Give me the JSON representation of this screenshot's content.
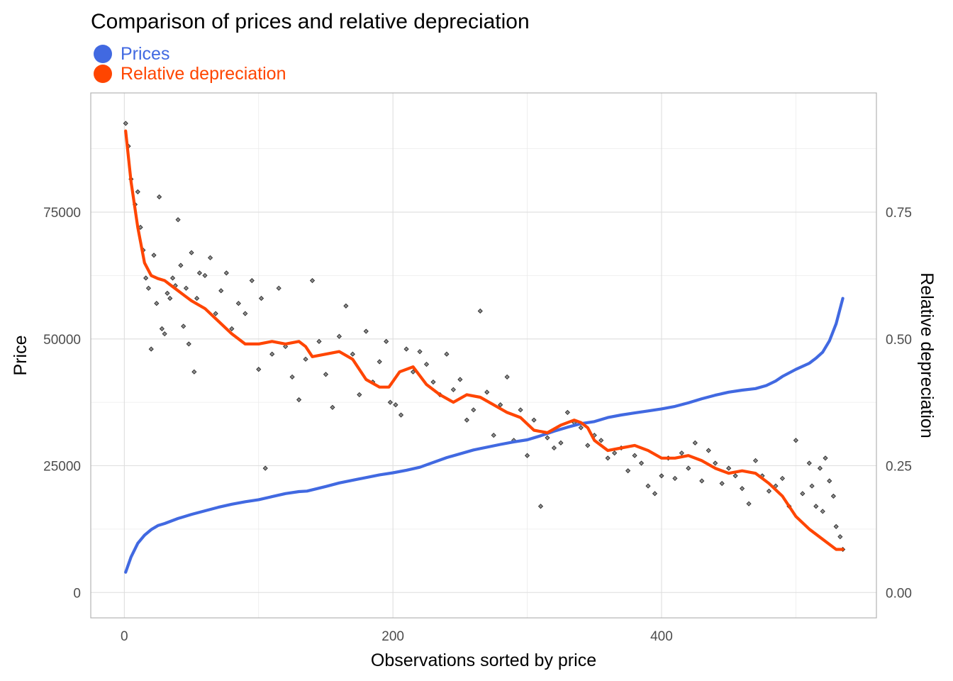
{
  "chart_data": {
    "type": "scatter",
    "title": "Comparison of prices and relative depreciation",
    "xlabel": "Observations sorted by price",
    "ylabel": "Price",
    "y2label": "Relative depreciation",
    "xlim": [
      -25,
      560
    ],
    "ylim": [
      -5000,
      98500
    ],
    "y2lim": [
      -0.05,
      0.985
    ],
    "x_ticks": [
      0,
      200,
      400
    ],
    "x_tick_labels": [
      "0",
      "200",
      "400"
    ],
    "y_ticks": [
      0,
      25000,
      50000,
      75000
    ],
    "y_tick_labels": [
      "0",
      "25000",
      "50000",
      "75000"
    ],
    "y2_ticks": [
      0,
      0.25,
      0.5,
      0.75
    ],
    "y2_tick_labels": [
      "0.00",
      "0.25",
      "0.50",
      "0.75"
    ],
    "grid": true,
    "legend_position": "top-left",
    "colors": {
      "prices": "#4169e1",
      "depreciation": "#ff4500",
      "points": "#000000"
    },
    "series": [
      {
        "name": "Prices",
        "type": "line",
        "axis": "left",
        "color": "#4169e1",
        "x": [
          1,
          5,
          10,
          15,
          20,
          25,
          30,
          40,
          50,
          60,
          70,
          80,
          90,
          100,
          110,
          120,
          130,
          136,
          150,
          160,
          175,
          190,
          200,
          210,
          220,
          240,
          260,
          280,
          290,
          300,
          310,
          320,
          330,
          340,
          350,
          360,
          370,
          380,
          390,
          400,
          410,
          420,
          430,
          440,
          450,
          460,
          470,
          478,
          485,
          490,
          500,
          510,
          515,
          520,
          525,
          530,
          535
        ],
        "values": [
          4000,
          7000,
          9700,
          11300,
          12400,
          13200,
          13600,
          14600,
          15400,
          16100,
          16800,
          17400,
          17900,
          18300,
          18900,
          19500,
          19900,
          20000,
          20900,
          21600,
          22400,
          23200,
          23600,
          24100,
          24700,
          26600,
          28100,
          29200,
          29700,
          30100,
          30900,
          31800,
          32600,
          33300,
          33700,
          34500,
          35000,
          35400,
          35800,
          36200,
          36700,
          37400,
          38200,
          38900,
          39500,
          39900,
          40200,
          40800,
          41700,
          42600,
          44000,
          45200,
          46200,
          47400,
          49600,
          53000,
          58000
        ]
      },
      {
        "name": "Relative depreciation",
        "type": "line",
        "axis": "right",
        "color": "#ff4500",
        "x": [
          1,
          5,
          10,
          15,
          20,
          25,
          30,
          35,
          40,
          45,
          50,
          60,
          70,
          80,
          90,
          100,
          110,
          120,
          130,
          135,
          140,
          150,
          160,
          170,
          180,
          190,
          197,
          205,
          215,
          225,
          235,
          245,
          255,
          265,
          275,
          285,
          295,
          305,
          315,
          325,
          335,
          340,
          345,
          350,
          360,
          370,
          380,
          390,
          400,
          410,
          420,
          430,
          440,
          450,
          460,
          470,
          480,
          490,
          500,
          510,
          520,
          530,
          535
        ],
        "values": [
          0.91,
          0.81,
          0.72,
          0.65,
          0.625,
          0.619,
          0.615,
          0.605,
          0.595,
          0.585,
          0.575,
          0.56,
          0.535,
          0.51,
          0.49,
          0.49,
          0.495,
          0.49,
          0.495,
          0.485,
          0.465,
          0.47,
          0.475,
          0.46,
          0.42,
          0.405,
          0.405,
          0.435,
          0.445,
          0.41,
          0.39,
          0.375,
          0.39,
          0.385,
          0.37,
          0.355,
          0.345,
          0.32,
          0.315,
          0.33,
          0.34,
          0.335,
          0.325,
          0.3,
          0.28,
          0.285,
          0.29,
          0.28,
          0.265,
          0.265,
          0.27,
          0.26,
          0.245,
          0.235,
          0.24,
          0.235,
          0.215,
          0.19,
          0.15,
          0.125,
          0.105,
          0.085,
          0.085
        ]
      },
      {
        "name": "",
        "type": "scatter",
        "axis": "left",
        "color": "#000000",
        "x": [
          1,
          3,
          5,
          8,
          10,
          12,
          14,
          16,
          18,
          20,
          22,
          24,
          26,
          28,
          30,
          32,
          34,
          36,
          38,
          40,
          42,
          44,
          46,
          48,
          50,
          52,
          54,
          56,
          60,
          64,
          68,
          72,
          76,
          80,
          85,
          90,
          95,
          100,
          102,
          105,
          110,
          115,
          120,
          125,
          130,
          135,
          140,
          145,
          150,
          155,
          160,
          165,
          170,
          175,
          180,
          185,
          190,
          195,
          198,
          202,
          206,
          210,
          215,
          220,
          225,
          230,
          235,
          240,
          245,
          250,
          255,
          260,
          265,
          270,
          275,
          280,
          285,
          290,
          295,
          300,
          305,
          310,
          315,
          320,
          325,
          330,
          335,
          340,
          345,
          350,
          355,
          360,
          365,
          370,
          375,
          380,
          385,
          390,
          395,
          400,
          405,
          410,
          415,
          420,
          425,
          430,
          435,
          440,
          445,
          450,
          455,
          460,
          465,
          470,
          475,
          480,
          485,
          490,
          495,
          500,
          505,
          510,
          512,
          515,
          518,
          520,
          522,
          525,
          528,
          530,
          533,
          535
        ],
        "values": [
          92500,
          88000,
          81500,
          76500,
          79000,
          72000,
          67500,
          62000,
          60000,
          48000,
          66500,
          57000,
          78000,
          52000,
          51000,
          59000,
          58000,
          62000,
          60500,
          73500,
          64500,
          52500,
          60000,
          49000,
          67000,
          43500,
          58000,
          63000,
          62500,
          66000,
          55000,
          59500,
          63000,
          52000,
          57000,
          55000,
          61500,
          44000,
          58000,
          24500,
          47000,
          60000,
          48500,
          42500,
          38000,
          46000,
          61500,
          49500,
          43000,
          36500,
          50500,
          56500,
          47000,
          39000,
          51500,
          41500,
          45500,
          49500,
          37500,
          37000,
          35000,
          48000,
          43500,
          47500,
          45000,
          41500,
          39000,
          47000,
          40000,
          42000,
          34000,
          36000,
          55500,
          39500,
          31000,
          37000,
          42500,
          30000,
          36000,
          27000,
          34000,
          17000,
          30500,
          28500,
          29500,
          35500,
          33500,
          32500,
          29000,
          31000,
          30000,
          26500,
          27500,
          28500,
          24000,
          27000,
          25500,
          21000,
          19500,
          23000,
          26500,
          22500,
          27500,
          24500,
          29500,
          22000,
          28000,
          25500,
          21500,
          24500,
          23000,
          20500,
          17500,
          26000,
          23000,
          20000,
          21000,
          22500,
          17000,
          30000,
          19500,
          25500,
          21000,
          17000,
          24500,
          16000,
          26500,
          22000,
          19000,
          13000,
          11000,
          8500
        ]
      }
    ]
  }
}
